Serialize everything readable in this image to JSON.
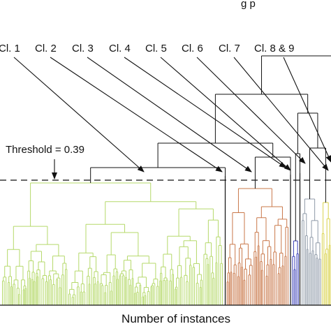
{
  "chart_data": {
    "type": "dendrogram",
    "top_text": "g p",
    "xlabel": "Number of instances",
    "threshold": {
      "label": "Threshold = 0.39",
      "value": 0.39,
      "line_style": "dashed"
    },
    "grid": false,
    "clusters": [
      {
        "label": "Cl. 1",
        "color": "#b5d96a"
      },
      {
        "label": "Cl. 2",
        "color": "#111111"
      },
      {
        "label": "Cl. 3",
        "color": "#c9784a"
      },
      {
        "label": "Cl. 4",
        "color": "#111111"
      },
      {
        "label": "Cl. 5",
        "color": "#3a3fb8"
      },
      {
        "label": "Cl. 6",
        "color": "#111111"
      },
      {
        "label": "Cl. 7",
        "color": "#8f9aa8"
      },
      {
        "label": "Cl. 8 & 9",
        "color": "#d9d24a"
      }
    ],
    "colors": {
      "axis": "#111111",
      "arrow": "#111111",
      "links_above_threshold": "#111111"
    }
  }
}
